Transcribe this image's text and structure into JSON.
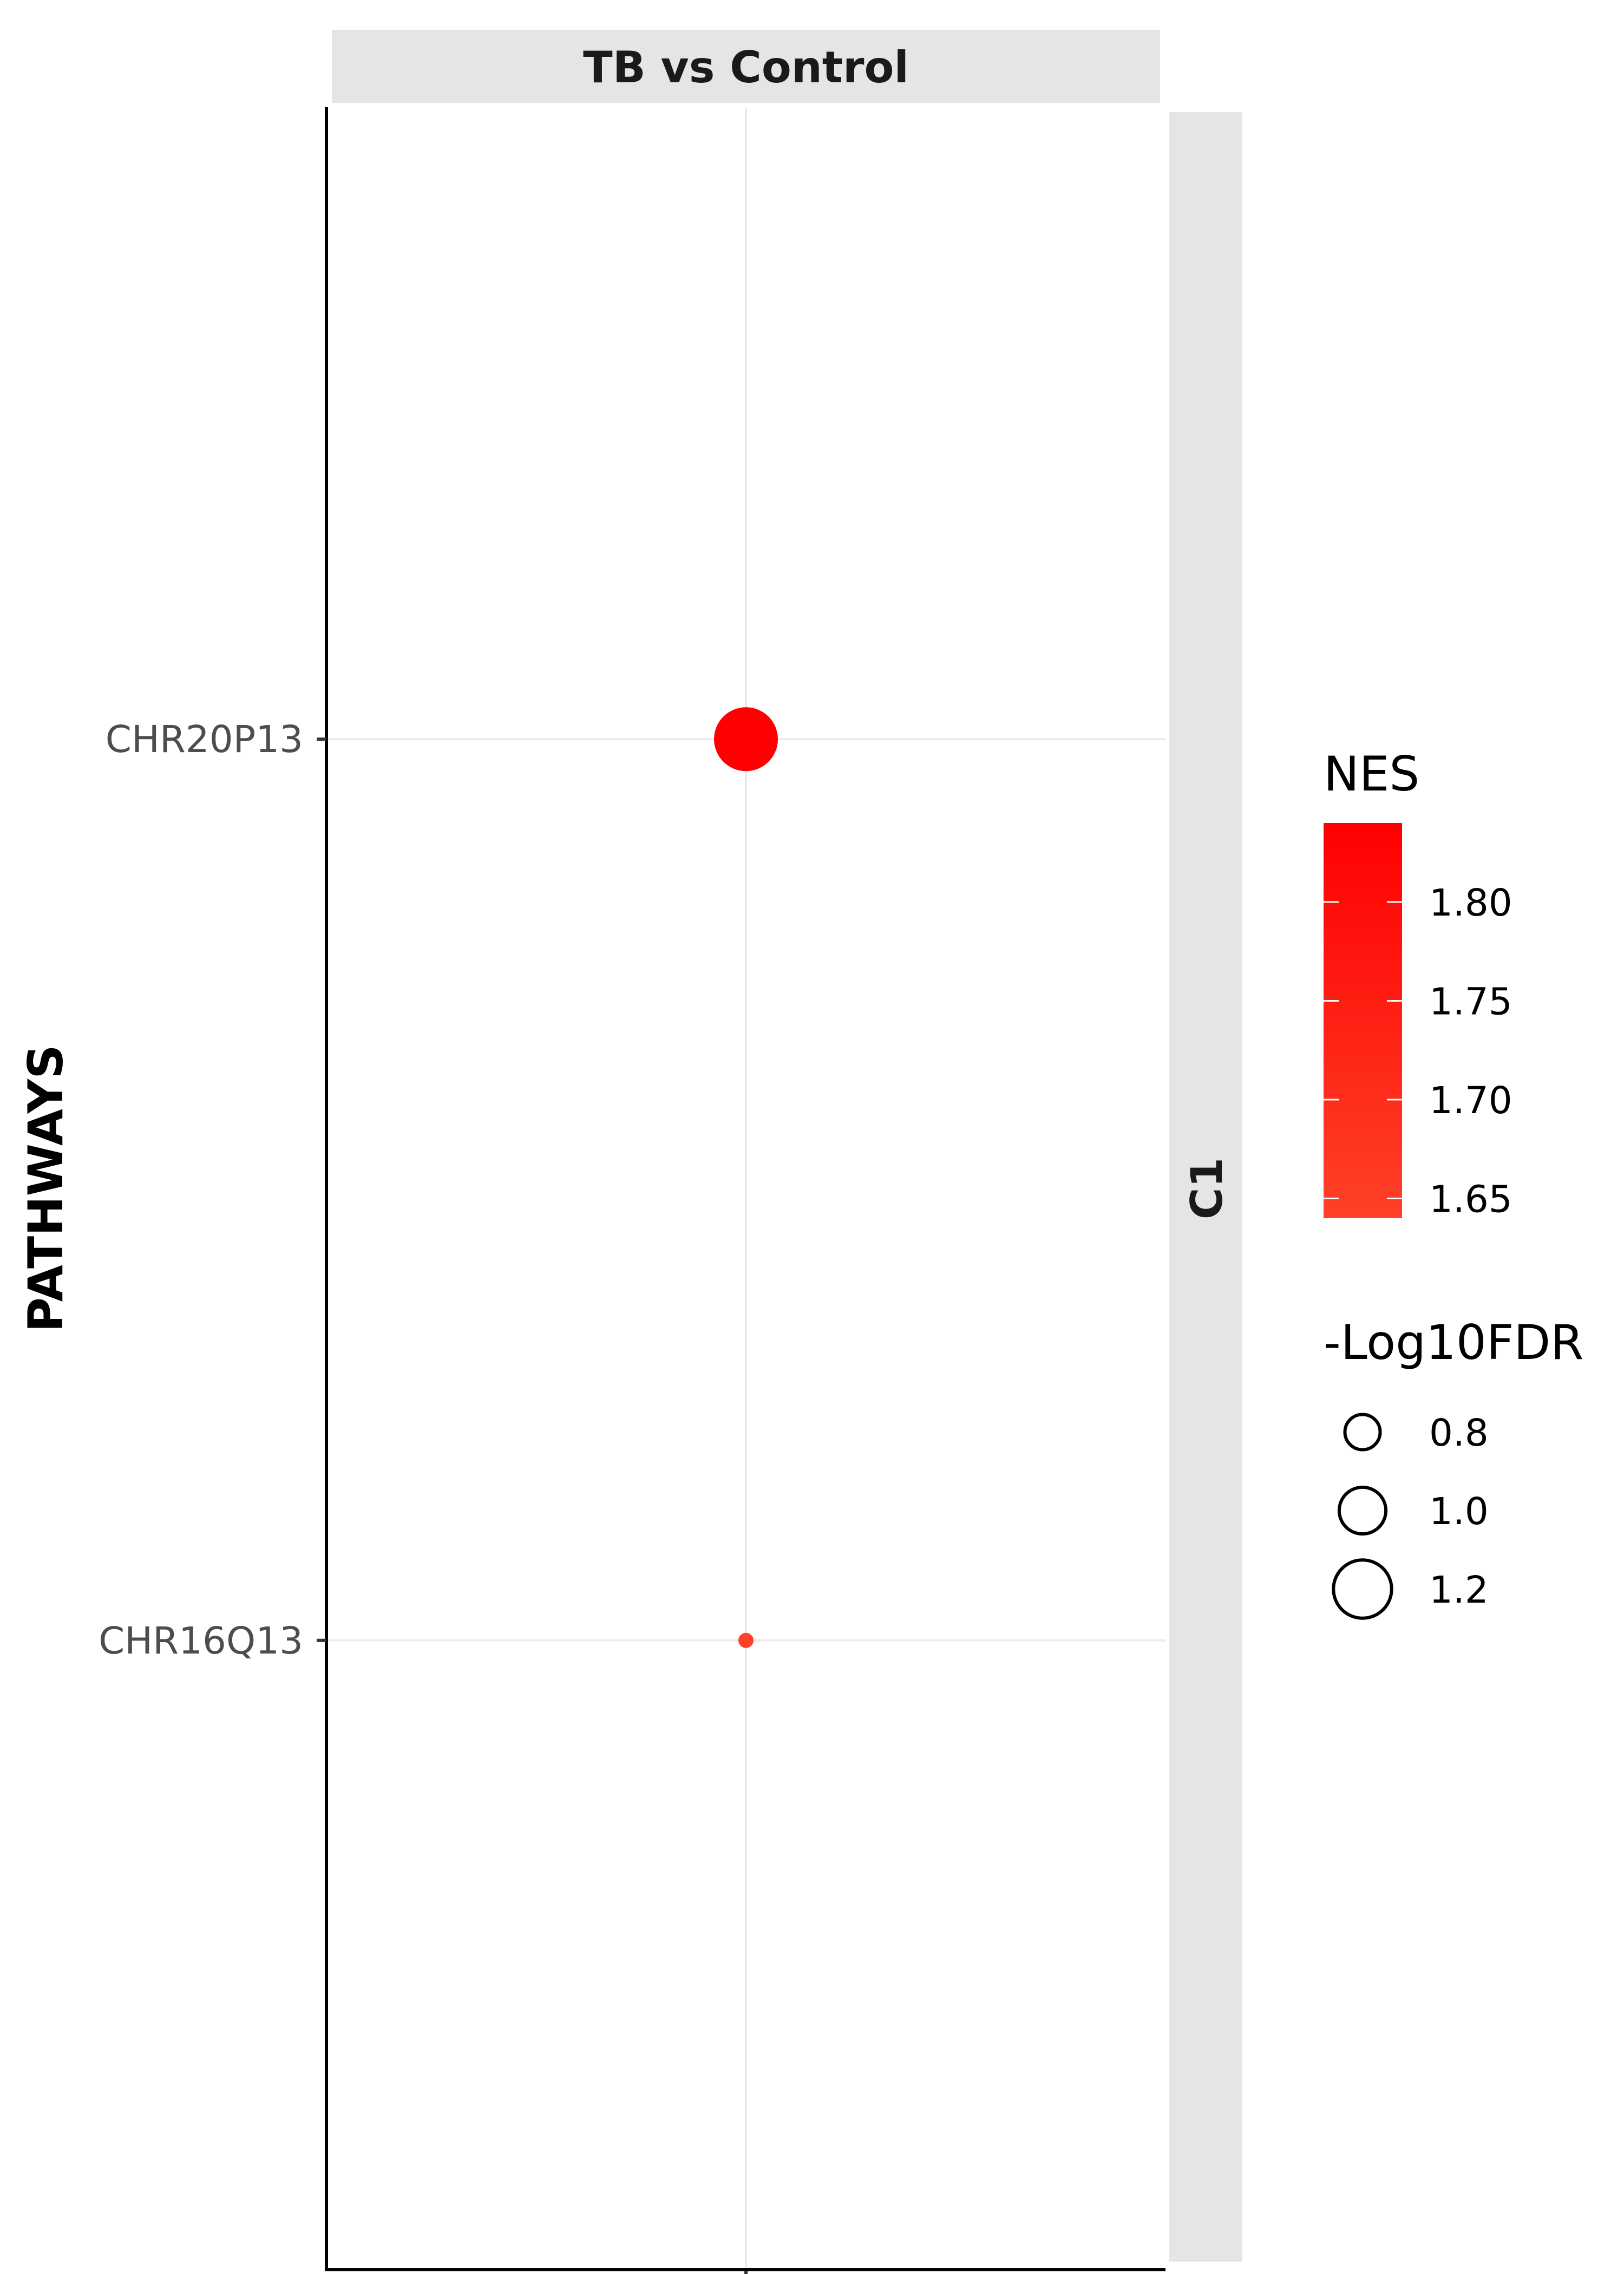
{
  "chart_data": {
    "type": "scatter",
    "facet_column": "TB vs Control",
    "facet_row": "C1",
    "ylabel": "PATHWAYS",
    "xlabel": "",
    "categories": [
      "CHR16Q13",
      "CHR20P13"
    ],
    "points": [
      {
        "pathway": "CHR20P13",
        "nes": 1.84,
        "neg_log10_fdr": 1.3,
        "color": "#ff0000"
      },
      {
        "pathway": "CHR16Q13",
        "nes": 1.64,
        "neg_log10_fdr": 0.45,
        "color": "#fe4128"
      }
    ],
    "grid": true,
    "legend_position": "right",
    "color_legend": {
      "title": "NES",
      "ticks": [
        "1.80",
        "1.75",
        "1.70",
        "1.65"
      ],
      "tick_values": [
        1.8,
        1.75,
        1.7,
        1.65
      ],
      "range": [
        1.64,
        1.84
      ],
      "color_low": "#fe4128",
      "color_high": "#ff0000"
    },
    "size_legend": {
      "title": "-Log10FDR",
      "labels": [
        "0.8",
        "1.0",
        "1.2"
      ],
      "values": [
        0.8,
        1.0,
        1.2
      ]
    }
  }
}
